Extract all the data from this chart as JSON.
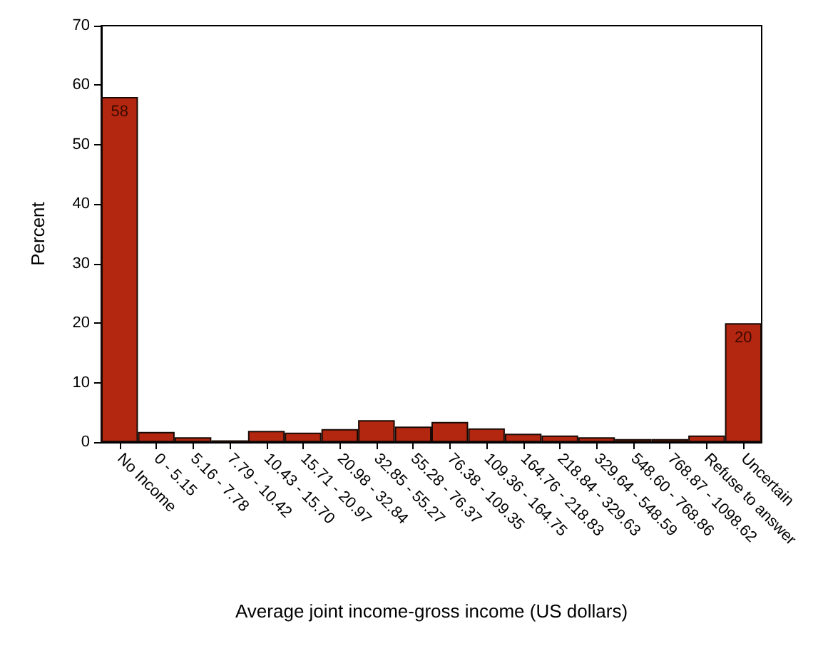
{
  "chart_data": {
    "type": "bar",
    "xlabel": "Average joint income-gross income (US dollars)",
    "ylabel": "Percent",
    "categories": [
      "No Income",
      "0 - 5.15",
      "5.16 - 7.78",
      "7.79 - 10.42",
      "10.43 - 15.70",
      "15.71 - 20.97",
      "20.98 - 32.84",
      "32.85 - 55.27",
      "55.28 - 76.37",
      "76.38 - 109.35",
      "109.36 - 164.75",
      "164.76 - 218.83",
      "218.84 - 329.63",
      "329.64 - 548.59",
      "548.60 - 768.86",
      "768.87 - 1098.62",
      "Refuse to answer",
      "Uncertain"
    ],
    "values": [
      58,
      1.7,
      0.8,
      0.3,
      1.9,
      1.6,
      2.2,
      3.7,
      2.6,
      3.4,
      2.3,
      1.4,
      1.1,
      0.8,
      0.5,
      0.5,
      1.1,
      20
    ],
    "value_labels": [
      "58",
      null,
      null,
      null,
      null,
      null,
      null,
      null,
      null,
      null,
      null,
      null,
      null,
      null,
      null,
      null,
      null,
      "20"
    ],
    "color": "#b3260f",
    "ylim": [
      0,
      70
    ],
    "yticks": [
      0,
      10,
      20,
      30,
      40,
      50,
      60,
      70
    ]
  }
}
